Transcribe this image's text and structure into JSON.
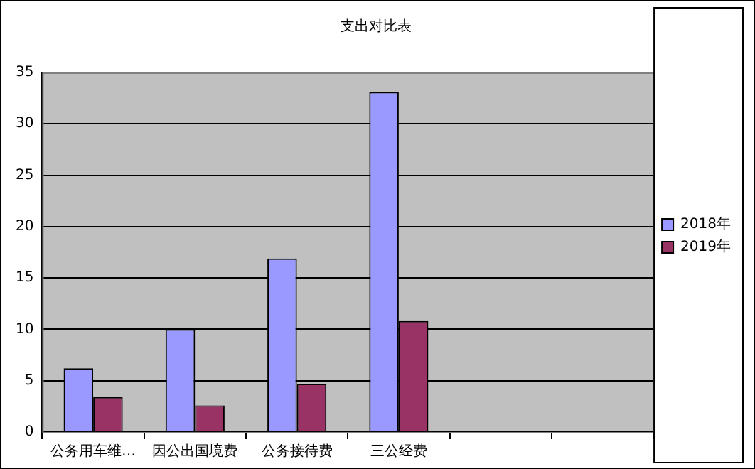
{
  "chart_data": {
    "type": "bar",
    "title": "支出对比表",
    "categories": [
      "公务用车维…",
      "因公出国境费",
      "公务接待费",
      "三公经费",
      null,
      null
    ],
    "series": [
      {
        "name": "2018年",
        "color": "#9999ff",
        "values": [
          6.2,
          10.0,
          16.9,
          33.1,
          null,
          null
        ]
      },
      {
        "name": "2019年",
        "color": "#993366",
        "values": [
          3.4,
          2.6,
          4.7,
          10.8,
          null,
          null
        ]
      }
    ],
    "ylim": [
      0,
      35
    ],
    "yticks": [
      0,
      5,
      10,
      15,
      20,
      25,
      30,
      35
    ],
    "grid": "y",
    "legend": "right"
  }
}
